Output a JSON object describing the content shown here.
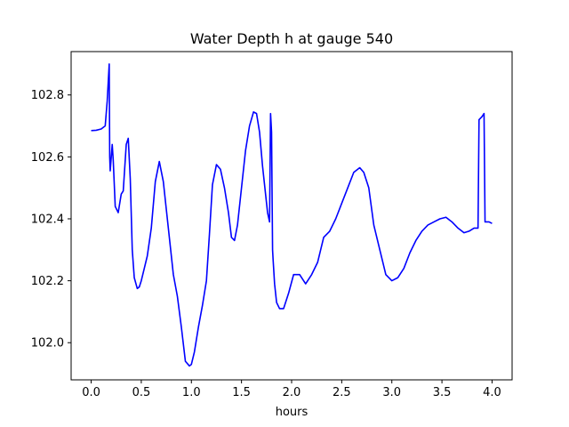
{
  "chart_data": {
    "type": "line",
    "title": "Water Depth h at gauge 540",
    "xlabel": "hours",
    "ylabel": "",
    "xlim": [
      -0.2,
      4.2
    ],
    "ylim": [
      101.88,
      102.94
    ],
    "xticks": [
      0.0,
      0.5,
      1.0,
      1.5,
      2.0,
      2.5,
      3.0,
      3.5,
      4.0
    ],
    "xtick_labels": [
      "0.0",
      "0.5",
      "1.0",
      "1.5",
      "2.0",
      "2.5",
      "3.0",
      "3.5",
      "4.0"
    ],
    "yticks": [
      102.0,
      102.2,
      102.4,
      102.6,
      102.8
    ],
    "ytick_labels": [
      "102.0",
      "102.2",
      "102.4",
      "102.6",
      "102.8"
    ],
    "grid": false,
    "legend": "none",
    "series": [
      {
        "color": "#0000ff",
        "x": [
          0.0,
          0.05,
          0.1,
          0.14,
          0.16,
          0.18,
          0.185,
          0.19,
          0.21,
          0.22,
          0.24,
          0.27,
          0.3,
          0.32,
          0.35,
          0.37,
          0.39,
          0.41,
          0.43,
          0.46,
          0.48,
          0.5,
          0.53,
          0.56,
          0.6,
          0.64,
          0.68,
          0.72,
          0.75,
          0.78,
          0.82,
          0.86,
          0.9,
          0.94,
          0.98,
          1.0,
          1.03,
          1.07,
          1.11,
          1.15,
          1.18,
          1.21,
          1.25,
          1.29,
          1.33,
          1.37,
          1.4,
          1.43,
          1.46,
          1.5,
          1.54,
          1.58,
          1.62,
          1.65,
          1.68,
          1.71,
          1.74,
          1.76,
          1.78,
          1.79,
          1.8,
          1.81,
          1.815,
          1.83,
          1.85,
          1.88,
          1.92,
          1.97,
          2.02,
          2.08,
          2.14,
          2.2,
          2.26,
          2.32,
          2.38,
          2.44,
          2.5,
          2.56,
          2.62,
          2.68,
          2.72,
          2.77,
          2.82,
          2.88,
          2.94,
          3.0,
          3.06,
          3.12,
          3.18,
          3.24,
          3.3,
          3.36,
          3.42,
          3.48,
          3.54,
          3.6,
          3.66,
          3.72,
          3.77,
          3.82,
          3.86,
          3.87,
          3.9,
          3.92,
          3.93,
          3.95,
          3.97,
          4.0
        ],
        "y": [
          102.685,
          102.686,
          102.69,
          102.7,
          102.78,
          102.9,
          102.6,
          102.555,
          102.64,
          102.59,
          102.44,
          102.42,
          102.48,
          102.49,
          102.64,
          102.66,
          102.53,
          102.3,
          102.21,
          102.175,
          102.18,
          102.2,
          102.24,
          102.28,
          102.37,
          102.52,
          102.585,
          102.52,
          102.43,
          102.34,
          102.22,
          102.15,
          102.05,
          101.94,
          101.925,
          101.93,
          101.97,
          102.05,
          102.12,
          102.2,
          102.35,
          102.51,
          102.575,
          102.56,
          102.5,
          102.42,
          102.34,
          102.33,
          102.38,
          102.5,
          102.62,
          102.7,
          102.745,
          102.74,
          102.68,
          102.57,
          102.48,
          102.42,
          102.39,
          102.74,
          102.68,
          102.3,
          102.27,
          102.19,
          102.13,
          102.11,
          102.11,
          102.16,
          102.22,
          102.22,
          102.19,
          102.22,
          102.26,
          102.34,
          102.36,
          102.4,
          102.45,
          102.5,
          102.55,
          102.565,
          102.55,
          102.5,
          102.38,
          102.3,
          102.22,
          102.2,
          102.21,
          102.24,
          102.29,
          102.33,
          102.36,
          102.38,
          102.39,
          102.4,
          102.405,
          102.39,
          102.37,
          102.355,
          102.36,
          102.37,
          102.37,
          102.72,
          102.73,
          102.74,
          102.39,
          102.39,
          102.39,
          102.385
        ]
      }
    ]
  }
}
